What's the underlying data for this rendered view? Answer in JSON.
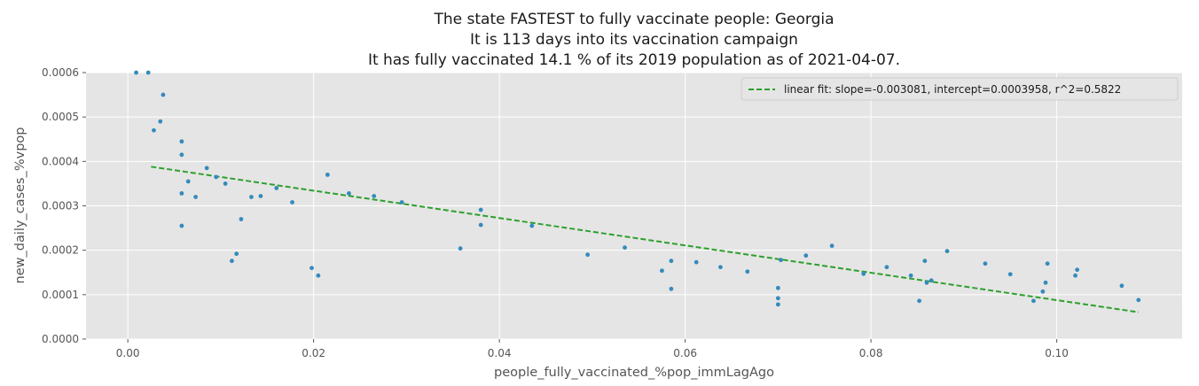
{
  "chart_data": {
    "type": "scatter",
    "title_lines": [
      "The state FASTEST to fully vaccinate people: Georgia",
      "It is 113 days into its vaccination campaign",
      "It has fully vaccinated  14.1 % of its 2019 population as of 2021-04-07."
    ],
    "xlabel": "people_fully_vaccinated_%pop_immLagAgo",
    "ylabel": "new_daily_cases_%vpop",
    "xlim": [
      -0.0045,
      0.1135
    ],
    "ylim": [
      0,
      0.0006
    ],
    "xticks": [
      0.0,
      0.02,
      0.04,
      0.06,
      0.08,
      0.1
    ],
    "xtick_labels": [
      "0.00",
      "0.02",
      "0.04",
      "0.06",
      "0.08",
      "0.10"
    ],
    "yticks": [
      0,
      0.0001,
      0.0002,
      0.0003,
      0.0004,
      0.0005,
      0.0006
    ],
    "ytick_labels": [
      "0.0000",
      "0.0001",
      "0.0002",
      "0.0003",
      "0.0004",
      "0.0005",
      "0.0006"
    ],
    "grid": true,
    "legend_position": "top-right",
    "colors": {
      "points": "#348ABD",
      "fit": "#2ca02c",
      "plot_bg": "#E5E5E5",
      "grid": "#ffffff"
    },
    "series": [
      {
        "kind": "points",
        "points": [
          [
            0.0009,
            0.0006
          ],
          [
            0.0022,
            0.0006
          ],
          [
            0.0038,
            0.00055
          ],
          [
            0.0035,
            0.00049
          ],
          [
            0.0028,
            0.00047
          ],
          [
            0.0058,
            0.000445
          ],
          [
            0.0058,
            0.000415
          ],
          [
            0.0085,
            0.000385
          ],
          [
            0.0095,
            0.000365
          ],
          [
            0.0065,
            0.000355
          ],
          [
            0.0105,
            0.00035
          ],
          [
            0.0058,
            0.000328
          ],
          [
            0.0073,
            0.00032
          ],
          [
            0.0133,
            0.00032
          ],
          [
            0.0143,
            0.000322
          ],
          [
            0.016,
            0.00034
          ],
          [
            0.0177,
            0.000308
          ],
          [
            0.0058,
            0.000255
          ],
          [
            0.0122,
            0.00027
          ],
          [
            0.0117,
            0.000192
          ],
          [
            0.0112,
            0.000176
          ],
          [
            0.0198,
            0.00016
          ],
          [
            0.0205,
            0.000143
          ],
          [
            0.0215,
            0.00037
          ],
          [
            0.0238,
            0.000328
          ],
          [
            0.0265,
            0.000322
          ],
          [
            0.0295,
            0.000308
          ],
          [
            0.0358,
            0.000204
          ],
          [
            0.038,
            0.000291
          ],
          [
            0.038,
            0.000257
          ],
          [
            0.0435,
            0.000255
          ],
          [
            0.0495,
            0.00019
          ],
          [
            0.0535,
            0.000206
          ],
          [
            0.0575,
            0.000154
          ],
          [
            0.0585,
            0.000176
          ],
          [
            0.0585,
            0.000113
          ],
          [
            0.0612,
            0.000173
          ],
          [
            0.0638,
            0.000162
          ],
          [
            0.0667,
            0.000152
          ],
          [
            0.07,
            0.000115
          ],
          [
            0.07,
            9.2e-05
          ],
          [
            0.07,
            7.8e-05
          ],
          [
            0.0703,
            0.000178
          ],
          [
            0.073,
            0.000188
          ],
          [
            0.0758,
            0.00021
          ],
          [
            0.0792,
            0.000147
          ],
          [
            0.0817,
            0.000162
          ],
          [
            0.0843,
            0.000143
          ],
          [
            0.0852,
            8.6e-05
          ],
          [
            0.0858,
            0.000176
          ],
          [
            0.086,
            0.000127
          ],
          [
            0.0865,
            0.000132
          ],
          [
            0.0882,
            0.000198
          ],
          [
            0.0923,
            0.00017
          ],
          [
            0.095,
            0.000146
          ],
          [
            0.0975,
            8.6e-05
          ],
          [
            0.0985,
            0.000107
          ],
          [
            0.0988,
            0.000127
          ],
          [
            0.099,
            0.00017
          ],
          [
            0.102,
            0.000143
          ],
          [
            0.1022,
            0.000156
          ],
          [
            0.107,
            0.00012
          ],
          [
            0.1088,
            8.8e-05
          ]
        ]
      },
      {
        "kind": "line",
        "name": "linear fit: slope=-0.003081, intercept=0.0003958, r^2=0.5822",
        "slope": -0.003081,
        "intercept": 0.0003958,
        "x_range": [
          0.0025,
          0.1088
        ]
      }
    ]
  }
}
